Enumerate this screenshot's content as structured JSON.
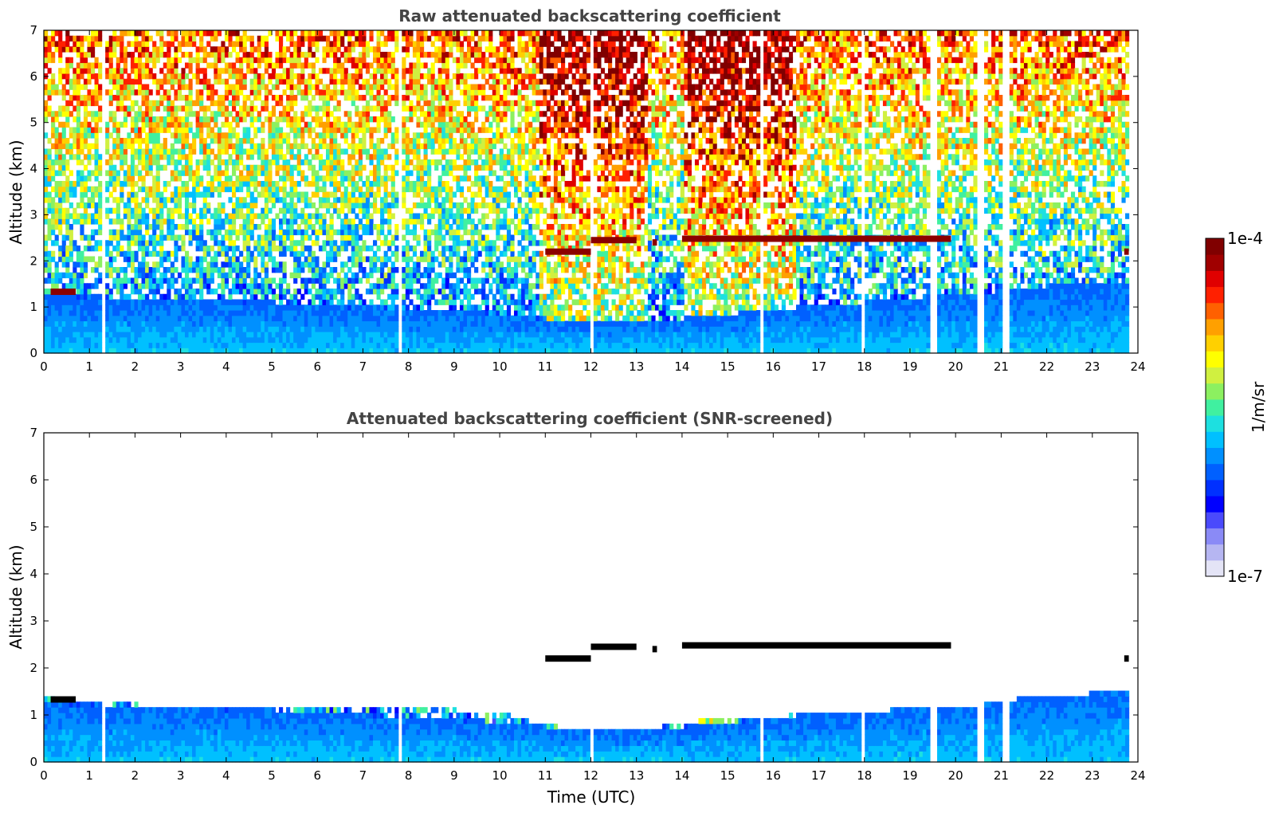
{
  "colors": {
    "colormap": [
      "#e4e4f6",
      "#b6b6f2",
      "#8a8af6",
      "#4a4afc",
      "#0000ff",
      "#0030ff",
      "#0060ff",
      "#0090ff",
      "#00c0ff",
      "#1de0e0",
      "#40f0a0",
      "#8cf060",
      "#d0f040",
      "#ffff00",
      "#ffd000",
      "#ffa000",
      "#ff6000",
      "#ff2000",
      "#e00000",
      "#a00000",
      "#800000"
    ],
    "frame": "#000000",
    "title": "#444444"
  },
  "chart_data": [
    {
      "type": "heatmap",
      "title": "Raw attenuated backscattering coefficient",
      "xlabel": "",
      "ylabel": "Altitude (km)",
      "xlim": [
        0,
        24
      ],
      "ylim": [
        0,
        7
      ],
      "xticks": [
        "0",
        "1",
        "2",
        "3",
        "4",
        "5",
        "6",
        "7",
        "8",
        "9",
        "10",
        "11",
        "12",
        "13",
        "14",
        "15",
        "16",
        "17",
        "18",
        "19",
        "20",
        "21",
        "22",
        "23",
        "24"
      ],
      "yticks": [
        "0",
        "1",
        "2",
        "3",
        "4",
        "5",
        "6",
        "7"
      ],
      "data_end_time": 23.8,
      "missing_profile_times": [
        1.28,
        1.33,
        7.8,
        12.05,
        15.75,
        17.95,
        19.45,
        19.52,
        20.5,
        20.58,
        21.05,
        21.1
      ],
      "boundary_layer_top_km": [
        [
          0,
          1.2
        ],
        [
          4,
          1.1
        ],
        [
          10,
          0.8
        ],
        [
          12,
          0.6
        ],
        [
          14,
          0.7
        ],
        [
          16,
          0.9
        ],
        [
          20,
          1.2
        ],
        [
          22,
          1.4
        ],
        [
          23.8,
          1.5
        ]
      ],
      "cloud_layers": [
        {
          "t_start": 0.15,
          "t_end": 0.7,
          "altitude_km": 1.33
        },
        {
          "t_start": 11.0,
          "t_end": 12.0,
          "altitude_km": 2.2
        },
        {
          "t_start": 12.0,
          "t_end": 13.0,
          "altitude_km": 2.45
        },
        {
          "t_start": 13.35,
          "t_end": 13.45,
          "altitude_km": 2.4
        },
        {
          "t_start": 14.0,
          "t_end": 19.9,
          "altitude_km": 2.48
        },
        {
          "t_start": 23.7,
          "t_end": 23.8,
          "altitude_km": 2.2
        }
      ]
    },
    {
      "type": "heatmap",
      "title": "Attenuated backscattering coefficient (SNR-screened)",
      "xlabel": "Time (UTC)",
      "ylabel": "Altitude (km)",
      "xlim": [
        0,
        24
      ],
      "ylim": [
        0,
        7
      ],
      "xticks": [
        "0",
        "1",
        "2",
        "3",
        "4",
        "5",
        "6",
        "7",
        "8",
        "9",
        "10",
        "11",
        "12",
        "13",
        "14",
        "15",
        "16",
        "17",
        "18",
        "19",
        "20",
        "21",
        "22",
        "23",
        "24"
      ],
      "yticks": [
        "0",
        "1",
        "2",
        "3",
        "4",
        "5",
        "6",
        "7"
      ],
      "data_end_time": 23.8,
      "screened_valid_top_km": [
        [
          0,
          1.3
        ],
        [
          3,
          1.1
        ],
        [
          6,
          1.05
        ],
        [
          9,
          1.05
        ],
        [
          10,
          1.0
        ],
        [
          10.8,
          0.75
        ],
        [
          12,
          0.6
        ],
        [
          13,
          0.6
        ],
        [
          14,
          0.8
        ],
        [
          15,
          0.85
        ],
        [
          16,
          0.9
        ],
        [
          17,
          1.0
        ],
        [
          20,
          1.1
        ],
        [
          21,
          1.25
        ],
        [
          22,
          1.35
        ],
        [
          23.8,
          1.45
        ]
      ]
    }
  ],
  "colorbar": {
    "label": "1/m/sr",
    "max_label": "1e-4",
    "min_label": "1e-7",
    "range": [
      1e-07,
      0.0001
    ],
    "scale": "log"
  }
}
